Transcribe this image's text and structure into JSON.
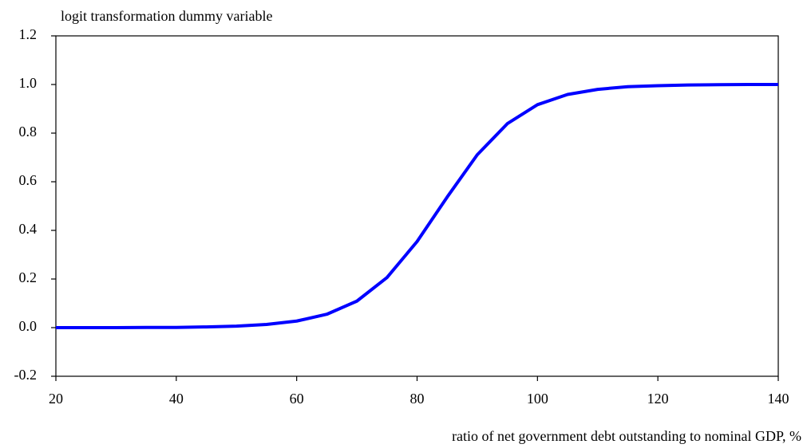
{
  "chart_data": {
    "type": "line",
    "title": "logit transformation dummy variable",
    "x_label": "ratio of net government debt outstanding to nominal GDP, %",
    "x": [
      20,
      25,
      30,
      35,
      40,
      45,
      50,
      55,
      60,
      65,
      70,
      75,
      80,
      85,
      90,
      95,
      100,
      105,
      110,
      115,
      120,
      125,
      130,
      135,
      140
    ],
    "values": [
      0.0,
      0.0,
      0.0,
      0.001,
      0.001,
      0.003,
      0.006,
      0.013,
      0.027,
      0.055,
      0.109,
      0.206,
      0.354,
      0.537,
      0.711,
      0.839,
      0.917,
      0.959,
      0.98,
      0.991,
      0.995,
      0.998,
      0.999,
      1.0,
      1.0
    ],
    "color": "#0000ff",
    "xlim": [
      20,
      140
    ],
    "xticks": [
      20,
      40,
      60,
      80,
      100,
      120,
      140
    ],
    "ylim": [
      -0.2,
      1.2
    ],
    "yticks": [
      -0.2,
      {
        "value": 0,
        "label": "0.0"
      },
      0.2,
      0.4,
      0.6,
      0.8,
      {
        "value": 1,
        "label": "1.0"
      },
      1.2
    ],
    "grid": false
  }
}
